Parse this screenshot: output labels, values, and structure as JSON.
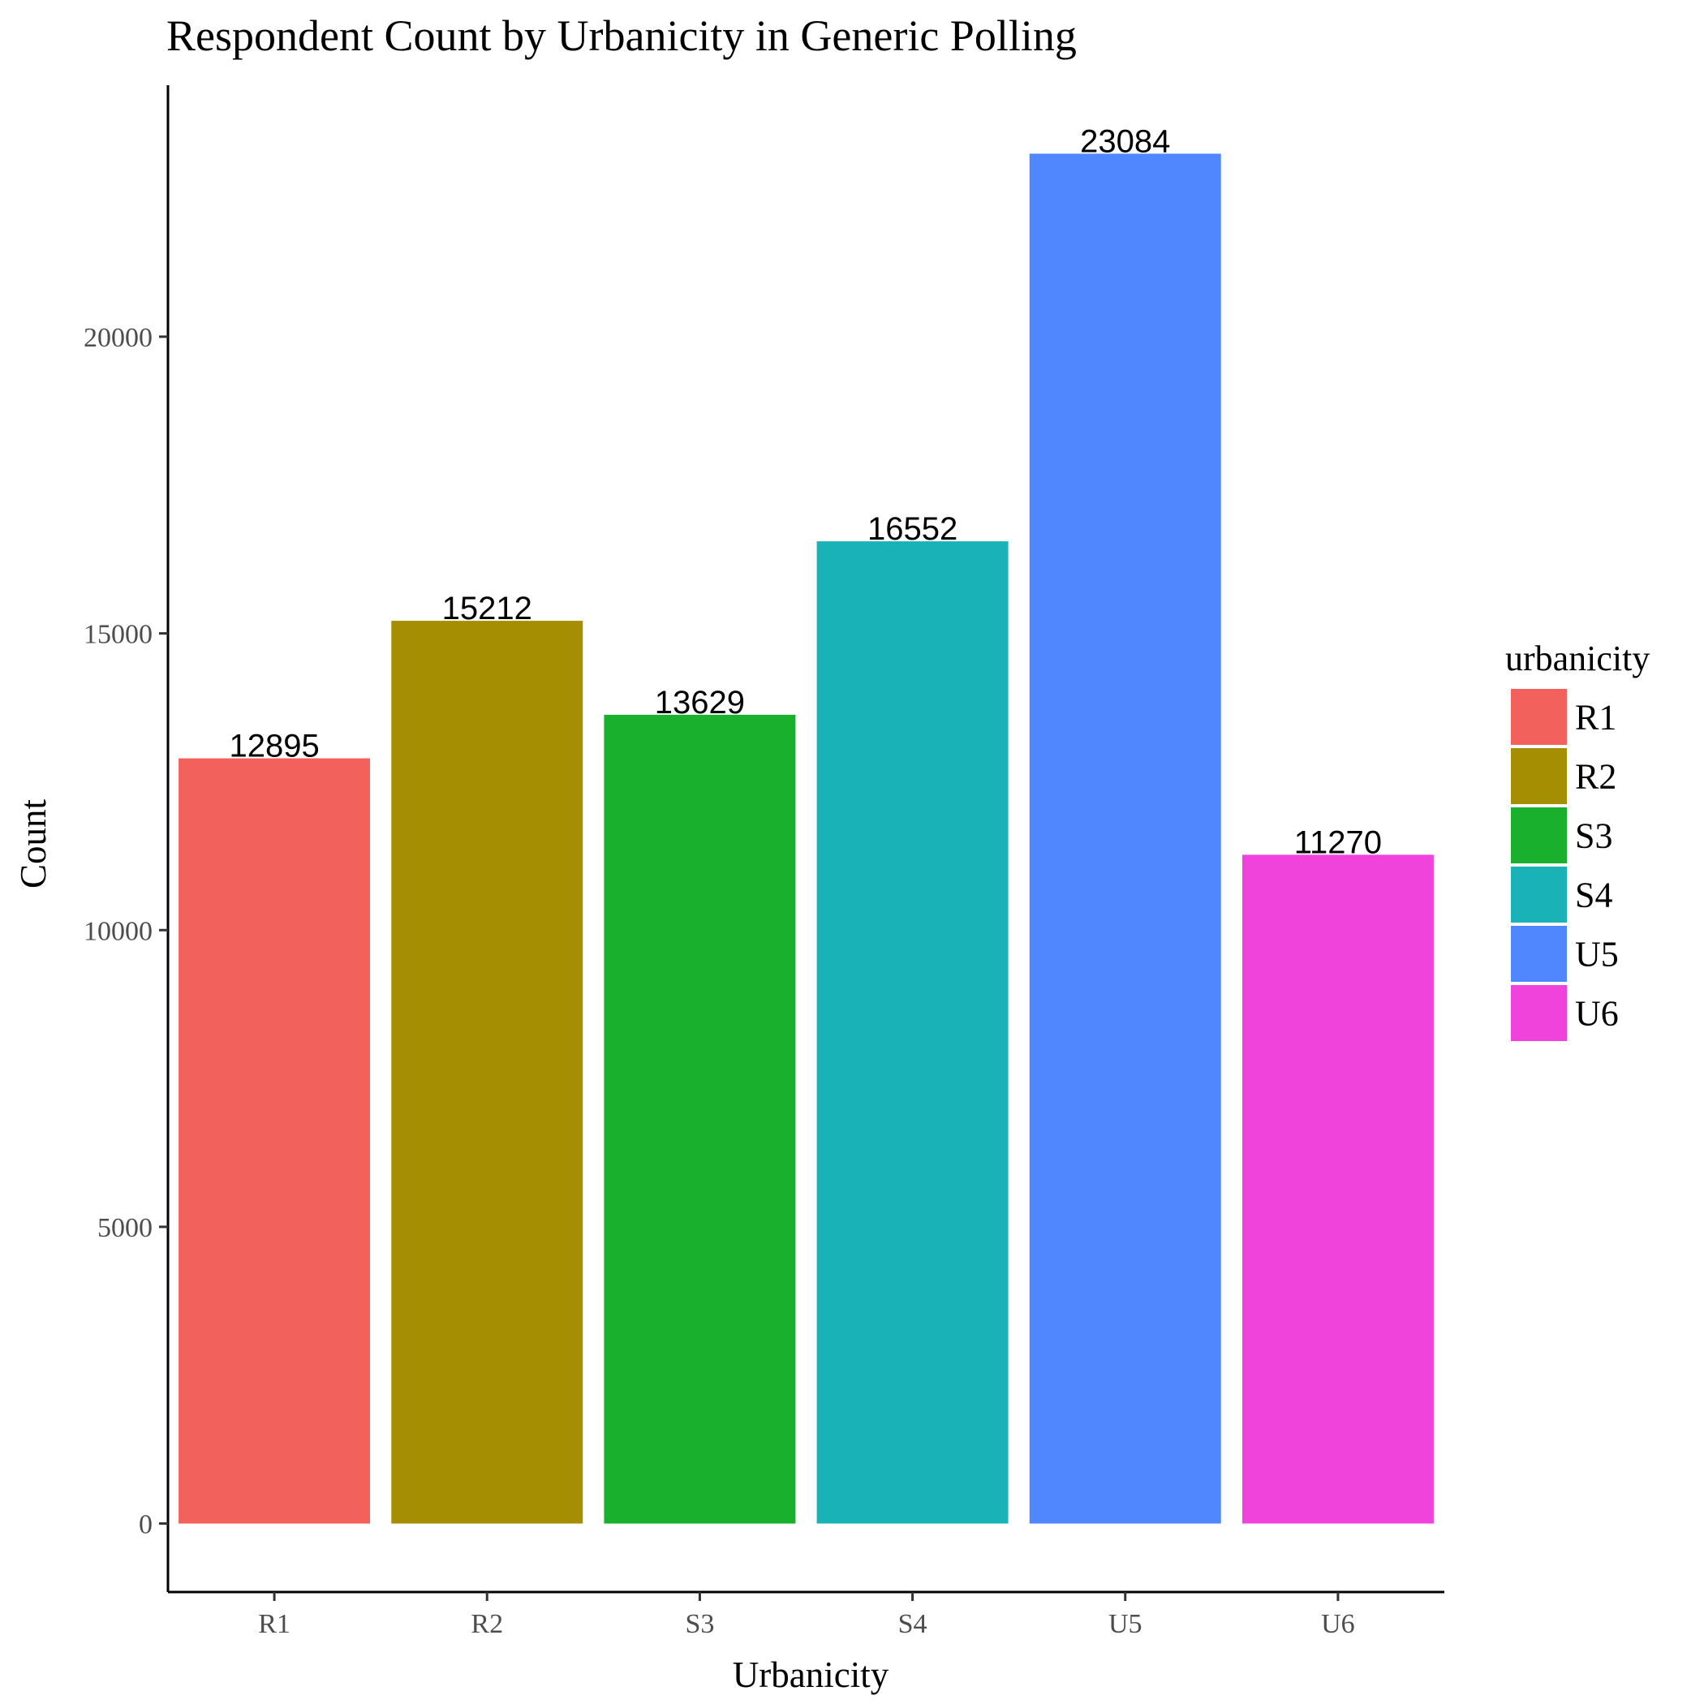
{
  "chart_data": {
    "type": "bar",
    "title": "Respondent Count by Urbanicity in Generic Polling",
    "xlabel": "Urbanicity",
    "ylabel": "Count",
    "categories": [
      "R1",
      "R2",
      "S3",
      "S4",
      "U5",
      "U6"
    ],
    "values": [
      12895,
      15212,
      13629,
      16552,
      23084,
      11270
    ],
    "data_labels": [
      "12895",
      "15212",
      "13629",
      "16552",
      "23084",
      "11270"
    ],
    "colors": [
      "#F2615B",
      "#A68E03",
      "#19B02D",
      "#19B3B7",
      "#5087FF",
      "#F043DB"
    ],
    "yticks": [
      0,
      5000,
      10000,
      15000,
      20000
    ],
    "ytick_labels": [
      "0",
      "5000",
      "10000",
      "15000",
      "20000"
    ],
    "ylim": [
      -1154,
      24238
    ],
    "grid": false,
    "legend": {
      "title": "urbanicity",
      "position": "right",
      "entries": [
        "R1",
        "R2",
        "S3",
        "S4",
        "U5",
        "U6"
      ]
    }
  }
}
